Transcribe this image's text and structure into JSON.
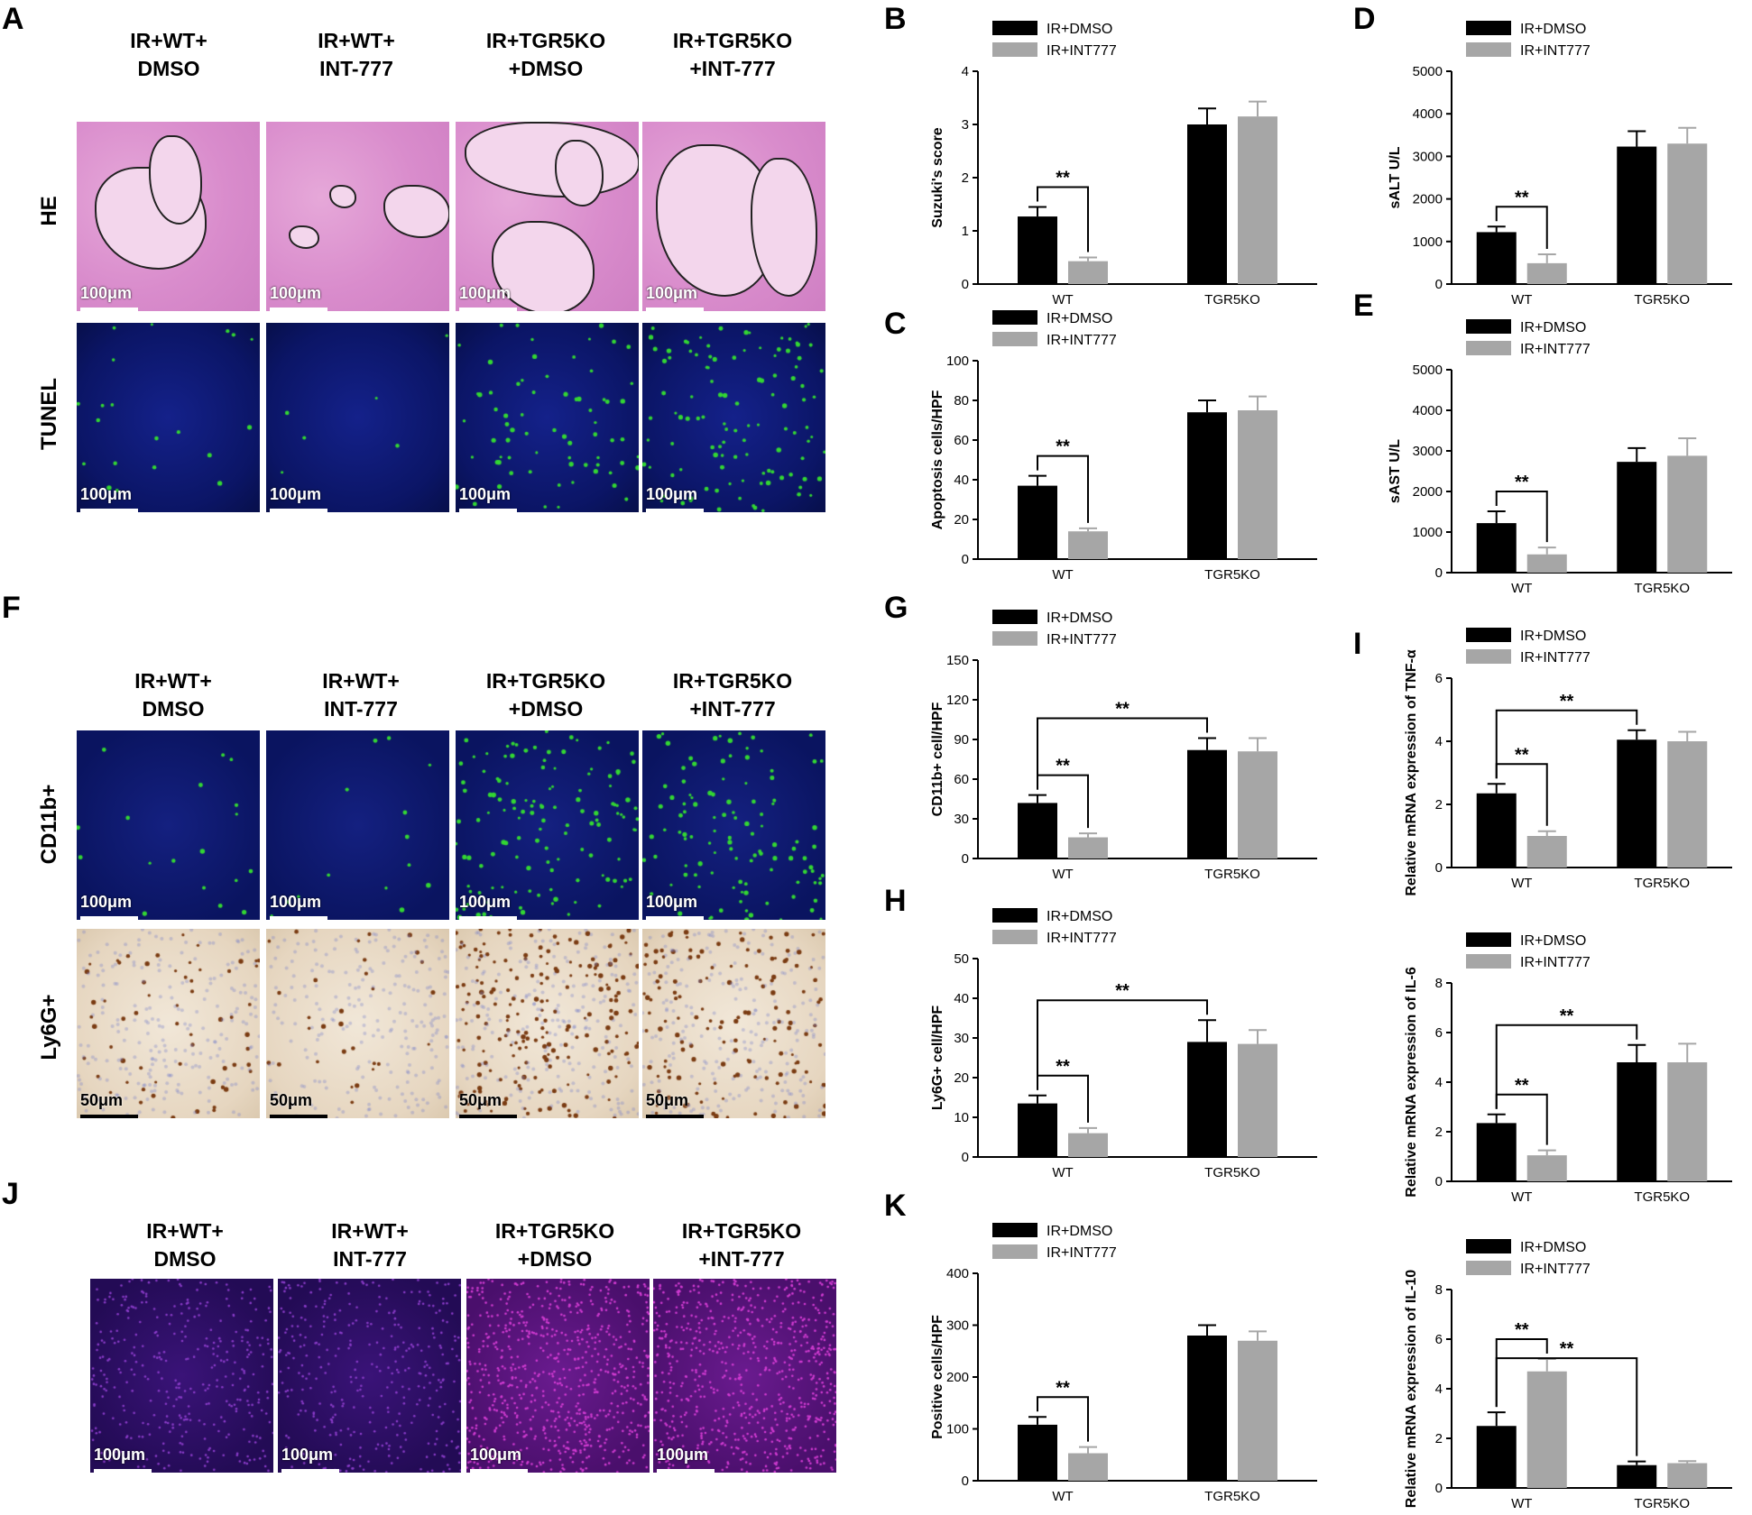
{
  "panel_letters": [
    "A",
    "B",
    "C",
    "D",
    "E",
    "F",
    "G",
    "H",
    "I",
    "J",
    "K"
  ],
  "micro_headers": {
    "row1": [
      "IR+WT+\nDMSO",
      "IR+WT+\nINT-777",
      "IR+TGR5KO\n+DMSO",
      "IR+TGR5KO\n+INT-777"
    ]
  },
  "row_labels": {
    "he": "HE",
    "tunel": "TUNEL",
    "cd11b": "CD11b+",
    "ly6g": "Ly6G+"
  },
  "scale_labels": {
    "um100": "100μm",
    "um50": "50μm"
  },
  "colors": {
    "dmso": "#000000",
    "int777": "#a6a6a6",
    "he": "#d98ccc",
    "fluor_green": "#33d633",
    "fluor_magenta": "#d23cd2",
    "dab": "#7a3b12"
  },
  "chart_data": [
    {
      "id": "B",
      "type": "bar",
      "categories": [
        "WT",
        "TGR5KO"
      ],
      "ylabel": "Suzuki's score",
      "ylim": [
        0,
        4
      ],
      "yticks": [
        0,
        1,
        2,
        3,
        4
      ],
      "series": [
        {
          "name": "IR+DMSO",
          "values": [
            1.27,
            3.0
          ],
          "errors": [
            0.18,
            0.3
          ]
        },
        {
          "name": "IR+INT777",
          "values": [
            0.43,
            3.15
          ],
          "errors": [
            0.07,
            0.28
          ]
        }
      ],
      "significance": [
        {
          "label": "**",
          "from": [
            0,
            0
          ],
          "to": [
            0,
            1
          ]
        }
      ]
    },
    {
      "id": "C",
      "type": "bar",
      "categories": [
        "WT",
        "TGR5KO"
      ],
      "ylabel": "Apoptosis cells/HPF",
      "ylim": [
        0,
        100
      ],
      "yticks": [
        0,
        20,
        40,
        60,
        80,
        100
      ],
      "series": [
        {
          "name": "IR+DMSO",
          "values": [
            37,
            74
          ],
          "errors": [
            5,
            6
          ]
        },
        {
          "name": "IR+INT777",
          "values": [
            14,
            75
          ],
          "errors": [
            1.5,
            7
          ]
        }
      ],
      "significance": [
        {
          "label": "**",
          "from": [
            0,
            0
          ],
          "to": [
            0,
            1
          ]
        }
      ]
    },
    {
      "id": "D",
      "type": "bar",
      "categories": [
        "WT",
        "TGR5KO"
      ],
      "ylabel": "sALT U/L",
      "ylim": [
        0,
        5000
      ],
      "yticks": [
        0,
        1000,
        2000,
        3000,
        4000,
        5000
      ],
      "series": [
        {
          "name": "IR+DMSO",
          "values": [
            1220,
            3230
          ],
          "errors": [
            130,
            360
          ]
        },
        {
          "name": "IR+INT777",
          "values": [
            490,
            3300
          ],
          "errors": [
            210,
            370
          ]
        }
      ],
      "significance": [
        {
          "label": "**",
          "from": [
            0,
            0
          ],
          "to": [
            0,
            1
          ]
        }
      ]
    },
    {
      "id": "E",
      "type": "bar",
      "categories": [
        "WT",
        "TGR5KO"
      ],
      "ylabel": "sAST U/L",
      "ylim": [
        0,
        5000
      ],
      "yticks": [
        0,
        1000,
        2000,
        3000,
        4000,
        5000
      ],
      "series": [
        {
          "name": "IR+DMSO",
          "values": [
            1220,
            2730
          ],
          "errors": [
            290,
            340
          ]
        },
        {
          "name": "IR+INT777",
          "values": [
            450,
            2880
          ],
          "errors": [
            170,
            430
          ]
        }
      ],
      "significance": [
        {
          "label": "**",
          "from": [
            0,
            0
          ],
          "to": [
            0,
            1
          ]
        }
      ]
    },
    {
      "id": "G",
      "type": "bar",
      "categories": [
        "WT",
        "TGR5KO"
      ],
      "ylabel": "CD11b+ cell/HPF",
      "ylim": [
        0,
        150
      ],
      "yticks": [
        0,
        30,
        60,
        90,
        120,
        150
      ],
      "series": [
        {
          "name": "IR+DMSO",
          "values": [
            42,
            82
          ],
          "errors": [
            6,
            9
          ]
        },
        {
          "name": "IR+INT777",
          "values": [
            16,
            81
          ],
          "errors": [
            3,
            10
          ]
        }
      ],
      "significance": [
        {
          "label": "**",
          "from": [
            0,
            0
          ],
          "to": [
            0,
            1
          ]
        },
        {
          "label": "**",
          "from": [
            0,
            0
          ],
          "to": [
            1,
            0
          ]
        }
      ]
    },
    {
      "id": "H",
      "type": "bar",
      "categories": [
        "WT",
        "TGR5KO"
      ],
      "ylabel": "Ly6G+ cell/HPF",
      "ylim": [
        0,
        50
      ],
      "yticks": [
        0,
        10,
        20,
        30,
        40,
        50
      ],
      "series": [
        {
          "name": "IR+DMSO",
          "values": [
            13.5,
            29
          ],
          "errors": [
            2,
            5.5
          ]
        },
        {
          "name": "IR+INT777",
          "values": [
            6,
            28.5
          ],
          "errors": [
            1.3,
            3.5
          ]
        }
      ],
      "significance": [
        {
          "label": "**",
          "from": [
            0,
            0
          ],
          "to": [
            0,
            1
          ]
        },
        {
          "label": "**",
          "from": [
            0,
            0
          ],
          "to": [
            1,
            0
          ]
        }
      ]
    },
    {
      "id": "I1",
      "type": "bar",
      "categories": [
        "WT",
        "TGR5KO"
      ],
      "ylabel": "Relative mRNA expression of TNF-α",
      "ylim": [
        0,
        6
      ],
      "yticks": [
        0,
        2,
        4,
        6
      ],
      "series": [
        {
          "name": "IR+DMSO",
          "values": [
            2.35,
            4.05
          ],
          "errors": [
            0.3,
            0.3
          ]
        },
        {
          "name": "IR+INT777",
          "values": [
            1.0,
            4.0
          ],
          "errors": [
            0.15,
            0.3
          ]
        }
      ],
      "significance": [
        {
          "label": "**",
          "from": [
            0,
            0
          ],
          "to": [
            0,
            1
          ]
        },
        {
          "label": "**",
          "from": [
            0,
            0
          ],
          "to": [
            1,
            0
          ]
        }
      ]
    },
    {
      "id": "I2",
      "type": "bar",
      "categories": [
        "WT",
        "TGR5KO"
      ],
      "ylabel": "Relative mRNA expression of IL-6",
      "ylim": [
        0,
        8
      ],
      "yticks": [
        0,
        2,
        4,
        6,
        8
      ],
      "series": [
        {
          "name": "IR+DMSO",
          "values": [
            2.35,
            4.8
          ],
          "errors": [
            0.35,
            0.7
          ]
        },
        {
          "name": "IR+INT777",
          "values": [
            1.05,
            4.8
          ],
          "errors": [
            0.2,
            0.75
          ]
        }
      ],
      "significance": [
        {
          "label": "**",
          "from": [
            0,
            0
          ],
          "to": [
            0,
            1
          ]
        },
        {
          "label": "**",
          "from": [
            0,
            0
          ],
          "to": [
            1,
            0
          ]
        }
      ]
    },
    {
      "id": "I3",
      "type": "bar",
      "categories": [
        "WT",
        "TGR5KO"
      ],
      "ylabel": "Relative mRNA expression of IL-10",
      "ylim": [
        0,
        8
      ],
      "yticks": [
        0,
        2,
        4,
        6,
        8
      ],
      "series": [
        {
          "name": "IR+DMSO",
          "values": [
            2.5,
            0.92
          ],
          "errors": [
            0.55,
            0.15
          ]
        },
        {
          "name": "IR+INT777",
          "values": [
            4.7,
            1.0
          ],
          "errors": [
            0.5,
            0.08
          ]
        }
      ],
      "significance": [
        {
          "label": "**",
          "from": [
            0,
            0
          ],
          "to": [
            0,
            1
          ]
        },
        {
          "label": "**",
          "from": [
            0,
            0
          ],
          "to": [
            1,
            0
          ]
        }
      ]
    },
    {
      "id": "K",
      "type": "bar",
      "categories": [
        "WT",
        "TGR5KO"
      ],
      "ylabel": "Positive cells/HPF",
      "ylim": [
        0,
        400
      ],
      "yticks": [
        0,
        100,
        200,
        300,
        400
      ],
      "series": [
        {
          "name": "IR+DMSO",
          "values": [
            108,
            280
          ],
          "errors": [
            15,
            20
          ]
        },
        {
          "name": "IR+INT777",
          "values": [
            53,
            270
          ],
          "errors": [
            12,
            18
          ]
        }
      ],
      "significance": [
        {
          "label": "**",
          "from": [
            0,
            0
          ],
          "to": [
            0,
            1
          ]
        }
      ]
    }
  ]
}
